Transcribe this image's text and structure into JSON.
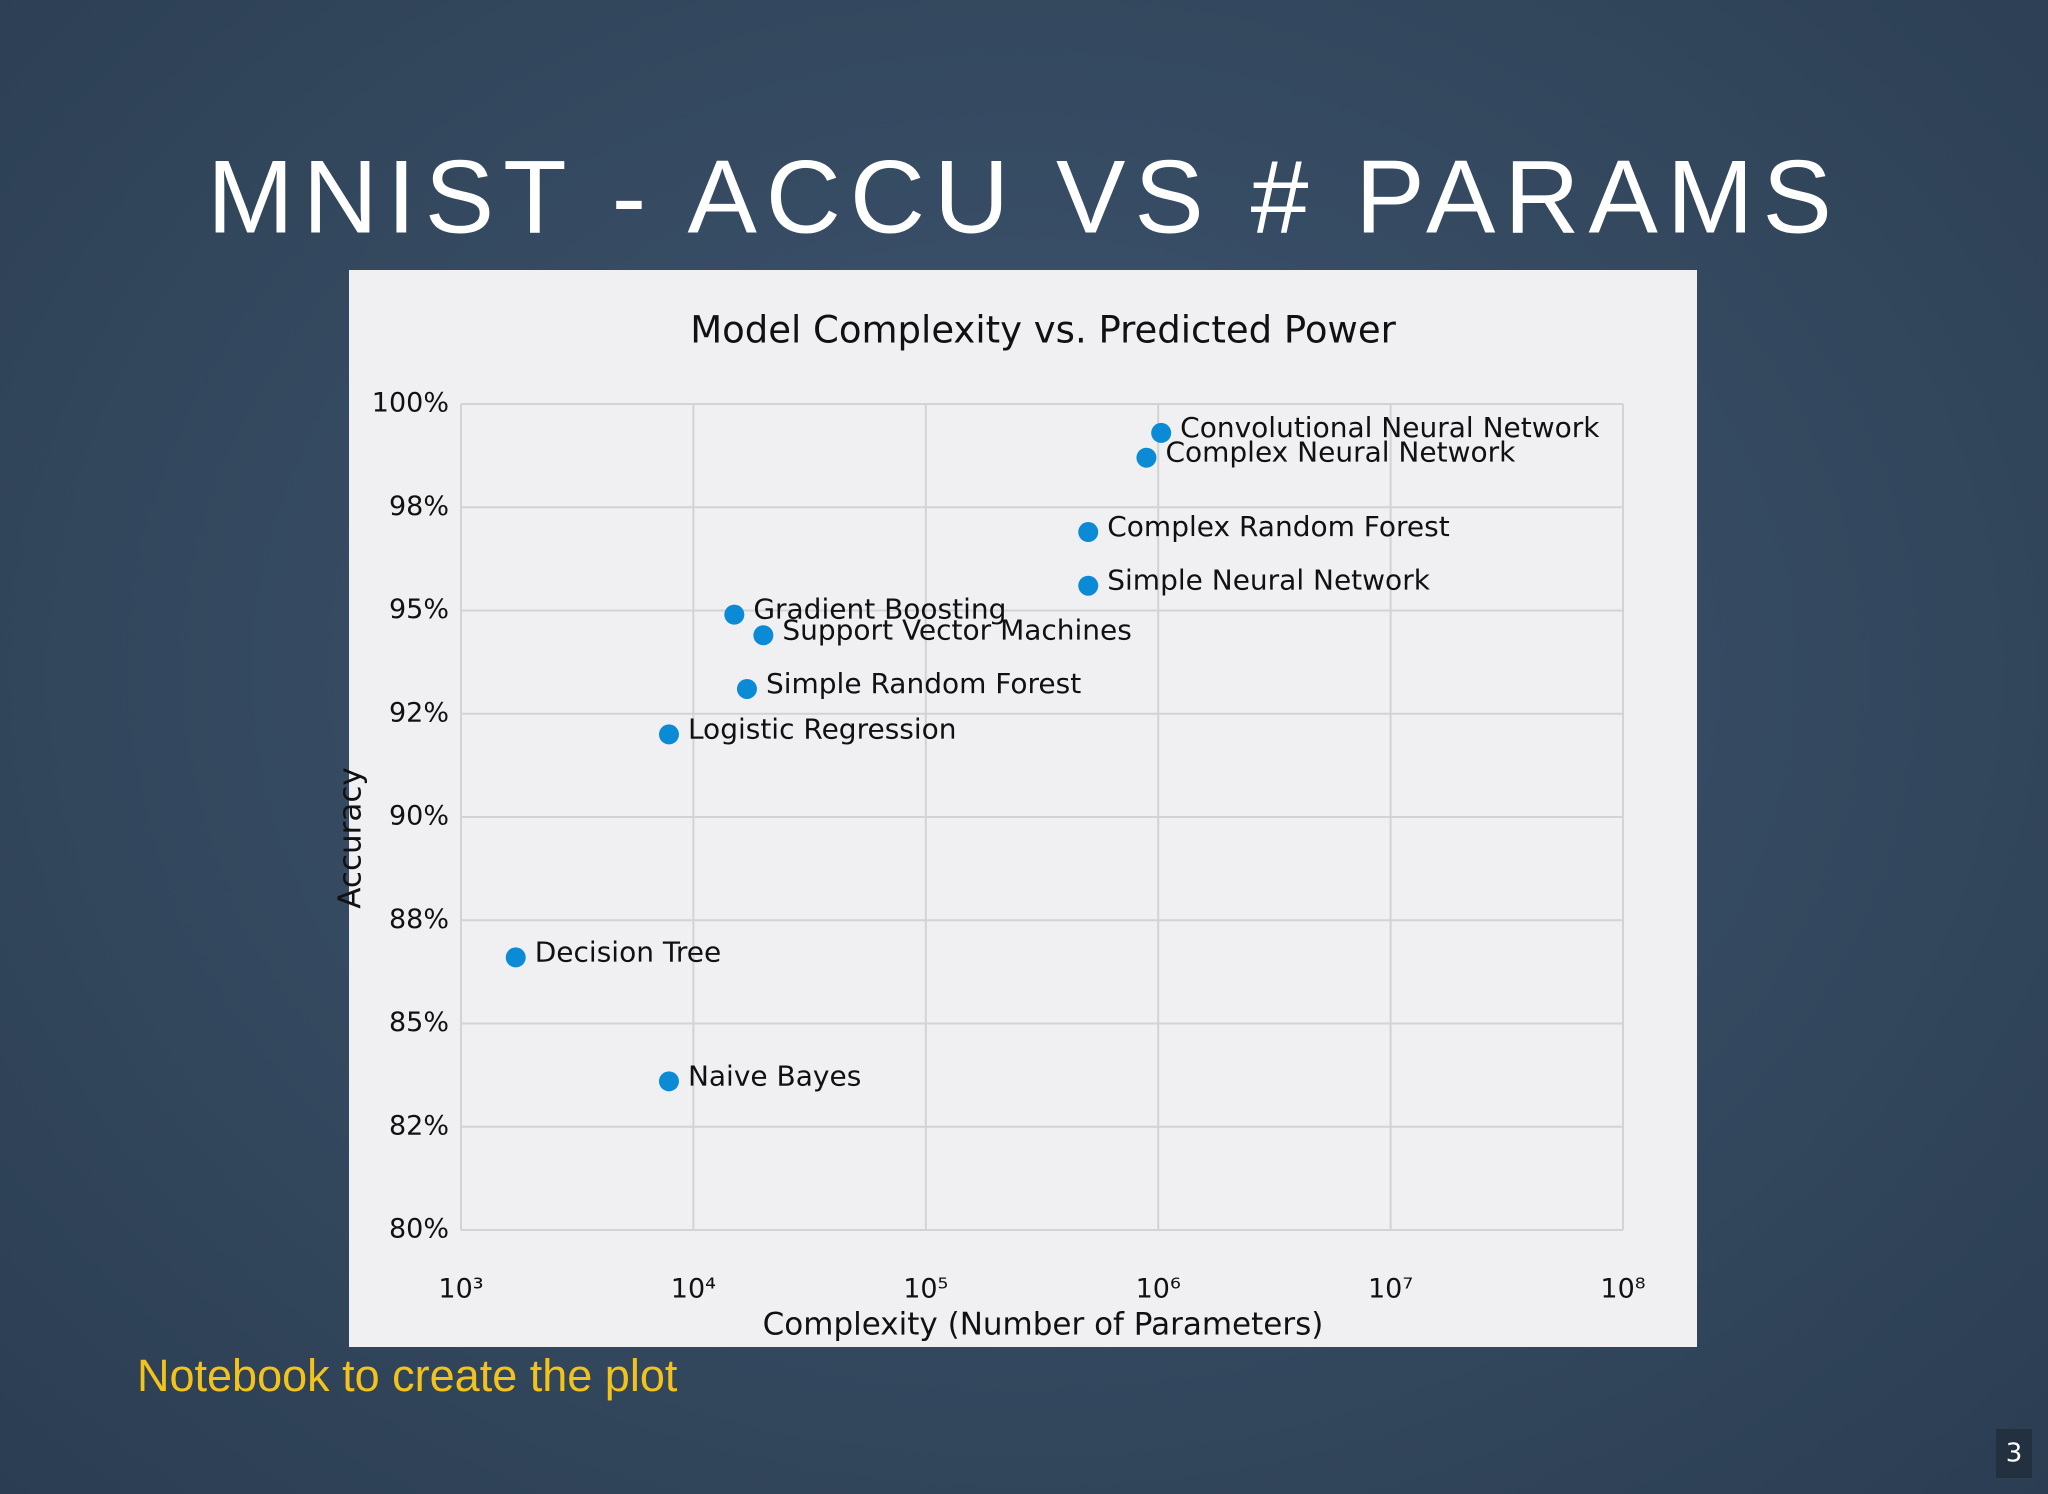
{
  "slide_title": "MNIST - ACCU VS # PARAMS",
  "footer_link": "Notebook  to create the plot",
  "page_number": "3",
  "chart_data": {
    "type": "scatter",
    "title": "Model Complexity vs. Predicted Power",
    "x_label": "Complexity (Number of Parameters)",
    "y_label": "Accuracy",
    "xscale": "log",
    "grid": true,
    "color": "#0b8ad6",
    "labels": [
      "Convolutional Neural Network",
      "Complex Neural Network",
      "Complex Random Forest",
      "Simple Neural Network",
      "Gradient Boosting",
      "Support Vector Machines",
      "Simple Random Forest",
      "Logistic Regression",
      "Decision Tree",
      "Naive Bayes"
    ],
    "x": [
      1030000,
      890000,
      500000,
      500000,
      15000,
      20000,
      17000,
      7850,
      1720,
      7850
    ],
    "values": [
      99.3,
      98.7,
      96.9,
      95.6,
      94.9,
      94.4,
      93.1,
      92.0,
      86.6,
      83.6
    ],
    "xlim": [
      1000,
      100000000
    ],
    "ylim": [
      80,
      100
    ],
    "xticks": [
      {
        "value": 1000,
        "label": "10³"
      },
      {
        "value": 10000,
        "label": "10⁴"
      },
      {
        "value": 100000,
        "label": "10⁵"
      },
      {
        "value": 1000000,
        "label": "10⁶"
      },
      {
        "value": 10000000,
        "label": "10⁷"
      },
      {
        "value": 100000000,
        "label": "10⁸"
      }
    ],
    "yticks": [
      {
        "value": 80,
        "label": "80%"
      },
      {
        "value": 82.5,
        "label": "82%"
      },
      {
        "value": 85,
        "label": "85%"
      },
      {
        "value": 87.5,
        "label": "88%"
      },
      {
        "value": 90,
        "label": "90%"
      },
      {
        "value": 92.5,
        "label": "92%"
      },
      {
        "value": 95,
        "label": "95%"
      },
      {
        "value": 97.5,
        "label": "98%"
      },
      {
        "value": 100,
        "label": "100%"
      }
    ]
  }
}
